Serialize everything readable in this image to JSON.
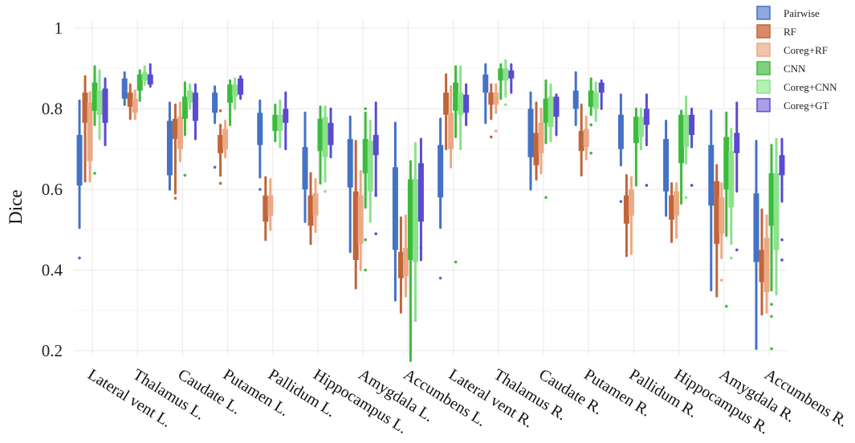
{
  "chart_data": {
    "type": "box",
    "ylabel": "Dice",
    "ylim": [
      0.18,
      1.02
    ],
    "yticks": [
      0.2,
      0.4,
      0.6,
      0.8,
      1
    ],
    "ytick_labels": [
      "0.2",
      "0.4",
      "0.6",
      "0.8",
      "1"
    ],
    "grid": true,
    "legend_position": "top-right",
    "categories": [
      "Lateral vent L.",
      "Thalamus L.",
      "Caudate L.",
      "Putamen L.",
      "Pallidum L.",
      "Hippocampus L.",
      "Amygdala L.",
      "Accumbens L.",
      "Lateral vent R.",
      "Thalamus R.",
      "Caudate R.",
      "Putamen R.",
      "Pallidum R.",
      "Hippocampus R.",
      "Amygdala R.",
      "Accumbens R."
    ],
    "series": [
      {
        "name": "Pairwise",
        "color": "#4472c4",
        "legend_fill": "#8fa9dc",
        "boxes": [
          [
            0.505,
            0.61,
            0.68,
            0.735,
            0.82
          ],
          [
            0.81,
            0.825,
            0.845,
            0.875,
            0.89
          ],
          [
            0.6,
            0.635,
            0.7,
            0.77,
            0.815
          ],
          [
            0.765,
            0.79,
            0.815,
            0.84,
            0.855
          ],
          [
            0.63,
            0.71,
            0.755,
            0.79,
            0.82
          ],
          [
            0.52,
            0.6,
            0.65,
            0.705,
            0.79
          ],
          [
            0.445,
            0.605,
            0.665,
            0.725,
            0.78
          ],
          [
            0.325,
            0.45,
            0.56,
            0.655,
            0.765
          ],
          [
            0.505,
            0.58,
            0.645,
            0.71,
            0.775
          ],
          [
            0.765,
            0.84,
            0.86,
            0.885,
            0.91
          ],
          [
            0.6,
            0.68,
            0.74,
            0.8,
            0.84
          ],
          [
            0.76,
            0.8,
            0.825,
            0.845,
            0.89
          ],
          [
            0.66,
            0.7,
            0.745,
            0.785,
            0.835
          ],
          [
            0.535,
            0.595,
            0.66,
            0.725,
            0.77
          ],
          [
            0.35,
            0.56,
            0.645,
            0.71,
            0.795
          ],
          [
            0.205,
            0.42,
            0.51,
            0.59,
            0.72
          ]
        ],
        "outliers": [
          [
            0.43
          ],
          [],
          [],
          [
            0.655
          ],
          [
            0.6
          ],
          [],
          [],
          [],
          [
            0.38
          ],
          [],
          [],
          [],
          [
            0.57
          ],
          [],
          [],
          []
        ]
      },
      {
        "name": "RF",
        "color": "#c0653a",
        "legend_fill": "#d98a66",
        "boxes": [
          [
            0.62,
            0.765,
            0.8,
            0.84,
            0.88
          ],
          [
            0.775,
            0.805,
            0.825,
            0.84,
            0.86
          ],
          [
            0.59,
            0.725,
            0.755,
            0.775,
            0.81
          ],
          [
            0.64,
            0.69,
            0.715,
            0.735,
            0.76
          ],
          [
            0.475,
            0.52,
            0.545,
            0.585,
            0.63
          ],
          [
            0.465,
            0.51,
            0.535,
            0.585,
            0.64
          ],
          [
            0.355,
            0.425,
            0.49,
            0.595,
            0.72
          ],
          [
            0.295,
            0.38,
            0.41,
            0.445,
            0.53
          ],
          [
            0.7,
            0.785,
            0.815,
            0.84,
            0.885
          ],
          [
            0.775,
            0.81,
            0.83,
            0.84,
            0.86
          ],
          [
            0.625,
            0.66,
            0.7,
            0.74,
            0.815
          ],
          [
            0.635,
            0.695,
            0.725,
            0.745,
            0.81
          ],
          [
            0.435,
            0.515,
            0.54,
            0.585,
            0.635
          ],
          [
            0.47,
            0.525,
            0.55,
            0.585,
            0.615
          ],
          [
            0.335,
            0.465,
            0.55,
            0.62,
            0.66
          ],
          [
            0.29,
            0.37,
            0.41,
            0.45,
            0.55
          ]
        ],
        "outliers": [
          [],
          [],
          [
            0.578
          ],
          [
            0.615,
            0.635,
            0.795
          ],
          [],
          [],
          [],
          [],
          [],
          [
            0.73
          ],
          [],
          [],
          [],
          [],
          [],
          []
        ]
      },
      {
        "name": "Coreg+RF",
        "color": "#eba985",
        "legend_fill": "#f2c4aa",
        "boxes": [
          [
            0.62,
            0.67,
            0.73,
            0.815,
            0.84
          ],
          [
            0.775,
            0.79,
            0.81,
            0.825,
            0.845
          ],
          [
            0.67,
            0.7,
            0.74,
            0.78,
            0.815
          ],
          [
            0.68,
            0.7,
            0.72,
            0.75,
            0.77
          ],
          [
            0.5,
            0.535,
            0.56,
            0.585,
            0.625
          ],
          [
            0.495,
            0.535,
            0.56,
            0.59,
            0.625
          ],
          [
            0.4,
            0.465,
            0.525,
            0.585,
            0.645
          ],
          [
            0.335,
            0.385,
            0.42,
            0.455,
            0.535
          ],
          [
            0.655,
            0.7,
            0.74,
            0.79,
            0.855
          ],
          [
            0.79,
            0.81,
            0.825,
            0.84,
            0.86
          ],
          [
            0.64,
            0.69,
            0.725,
            0.765,
            0.8
          ],
          [
            0.675,
            0.705,
            0.73,
            0.75,
            0.78
          ],
          [
            0.44,
            0.535,
            0.56,
            0.6,
            0.63
          ],
          [
            0.48,
            0.535,
            0.56,
            0.595,
            0.615
          ],
          [
            0.43,
            0.49,
            0.545,
            0.58,
            0.615
          ],
          [
            0.295,
            0.345,
            0.39,
            0.48,
            0.535
          ]
        ],
        "outliers": [
          [
            0.655
          ],
          [],
          [],
          [],
          [],
          [],
          [],
          [],
          [],
          [
            0.745
          ],
          [],
          [],
          [],
          [],
          [
            0.375
          ],
          []
        ]
      },
      {
        "name": "CNN",
        "color": "#3cbb3c",
        "legend_fill": "#7fd17f",
        "boxes": [
          [
            0.76,
            0.795,
            0.83,
            0.865,
            0.905
          ],
          [
            0.82,
            0.845,
            0.87,
            0.885,
            0.895
          ],
          [
            0.735,
            0.775,
            0.81,
            0.83,
            0.865
          ],
          [
            0.76,
            0.815,
            0.84,
            0.86,
            0.87
          ],
          [
            0.72,
            0.745,
            0.775,
            0.785,
            0.81
          ],
          [
            0.615,
            0.695,
            0.735,
            0.775,
            0.805
          ],
          [
            0.555,
            0.64,
            0.7,
            0.725,
            0.79
          ],
          [
            0.175,
            0.425,
            0.555,
            0.625,
            0.67
          ],
          [
            0.73,
            0.795,
            0.825,
            0.865,
            0.905
          ],
          [
            0.825,
            0.87,
            0.885,
            0.9,
            0.91
          ],
          [
            0.715,
            0.765,
            0.8,
            0.825,
            0.87
          ],
          [
            0.785,
            0.805,
            0.83,
            0.845,
            0.875
          ],
          [
            0.61,
            0.715,
            0.755,
            0.78,
            0.8
          ],
          [
            0.565,
            0.665,
            0.71,
            0.785,
            0.795
          ],
          [
            0.485,
            0.6,
            0.68,
            0.73,
            0.79
          ],
          [
            0.35,
            0.51,
            0.57,
            0.64,
            0.71
          ]
        ],
        "outliers": [
          [
            0.64
          ],
          [],
          [
            0.635
          ],
          [],
          [],
          [],
          [
            0.8,
            0.475,
            0.4
          ],
          [],
          [
            0.42
          ],
          [],
          [
            0.58
          ],
          [
            0.76,
            0.69
          ],
          [],
          [],
          [
            0.31
          ],
          [
            0.315,
            0.285,
            0.205
          ]
        ]
      },
      {
        "name": "Coreg+CNN",
        "color": "#8ae28a",
        "legend_fill": "#b6efb6",
        "boxes": [
          [
            0.725,
            0.785,
            0.815,
            0.845,
            0.895
          ],
          [
            0.86,
            0.87,
            0.88,
            0.89,
            0.905
          ],
          [
            0.8,
            0.815,
            0.835,
            0.845,
            0.86
          ],
          [
            0.8,
            0.83,
            0.845,
            0.86,
            0.875
          ],
          [
            0.705,
            0.745,
            0.765,
            0.785,
            0.82
          ],
          [
            0.62,
            0.68,
            0.73,
            0.78,
            0.805
          ],
          [
            0.52,
            0.595,
            0.665,
            0.72,
            0.77
          ],
          [
            0.28,
            0.42,
            0.545,
            0.625,
            0.715
          ],
          [
            0.7,
            0.785,
            0.81,
            0.84,
            0.905
          ],
          [
            0.83,
            0.87,
            0.885,
            0.9,
            0.92
          ],
          [
            0.72,
            0.755,
            0.79,
            0.83,
            0.86
          ],
          [
            0.77,
            0.8,
            0.82,
            0.84,
            0.865
          ],
          [
            0.7,
            0.73,
            0.76,
            0.78,
            0.8
          ],
          [
            0.665,
            0.705,
            0.75,
            0.785,
            0.83
          ],
          [
            0.465,
            0.555,
            0.63,
            0.695,
            0.75
          ],
          [
            0.34,
            0.45,
            0.58,
            0.64,
            0.725
          ]
        ],
        "outliers": [
          [],
          [],
          [],
          [],
          [],
          [
            0.595
          ],
          [],
          [
            0.275
          ],
          [],
          [
            0.81
          ],
          [],
          [],
          [],
          [
            0.58
          ],
          [
            0.43
          ],
          []
        ]
      },
      {
        "name": "Coreg+GT",
        "color": "#5a4bd1",
        "legend_fill": "#a99ee8",
        "boxes": [
          [
            0.71,
            0.765,
            0.815,
            0.85,
            0.875
          ],
          [
            0.855,
            0.86,
            0.875,
            0.885,
            0.91
          ],
          [
            0.725,
            0.77,
            0.81,
            0.84,
            0.86
          ],
          [
            0.825,
            0.835,
            0.855,
            0.875,
            0.88
          ],
          [
            0.7,
            0.765,
            0.785,
            0.8,
            0.84
          ],
          [
            0.68,
            0.71,
            0.745,
            0.765,
            0.8
          ],
          [
            0.585,
            0.685,
            0.705,
            0.735,
            0.815
          ],
          [
            0.425,
            0.52,
            0.59,
            0.665,
            0.725
          ],
          [
            0.76,
            0.79,
            0.815,
            0.835,
            0.86
          ],
          [
            0.84,
            0.875,
            0.89,
            0.895,
            0.91
          ],
          [
            0.735,
            0.78,
            0.805,
            0.83,
            0.835
          ],
          [
            0.8,
            0.84,
            0.855,
            0.865,
            0.87
          ],
          [
            0.71,
            0.76,
            0.78,
            0.8,
            0.835
          ],
          [
            0.705,
            0.735,
            0.76,
            0.785,
            0.8
          ],
          [
            0.595,
            0.69,
            0.71,
            0.74,
            0.815
          ],
          [
            0.57,
            0.635,
            0.655,
            0.685,
            0.725
          ]
        ],
        "outliers": [
          [],
          [],
          [],
          [],
          [],
          [],
          [
            0.585,
            0.49
          ],
          [
            0.455
          ],
          [],
          [],
          [],
          [],
          [
            0.61
          ],
          [
            0.61
          ],
          [
            0.45
          ],
          [
            0.475,
            0.425
          ]
        ]
      }
    ]
  }
}
